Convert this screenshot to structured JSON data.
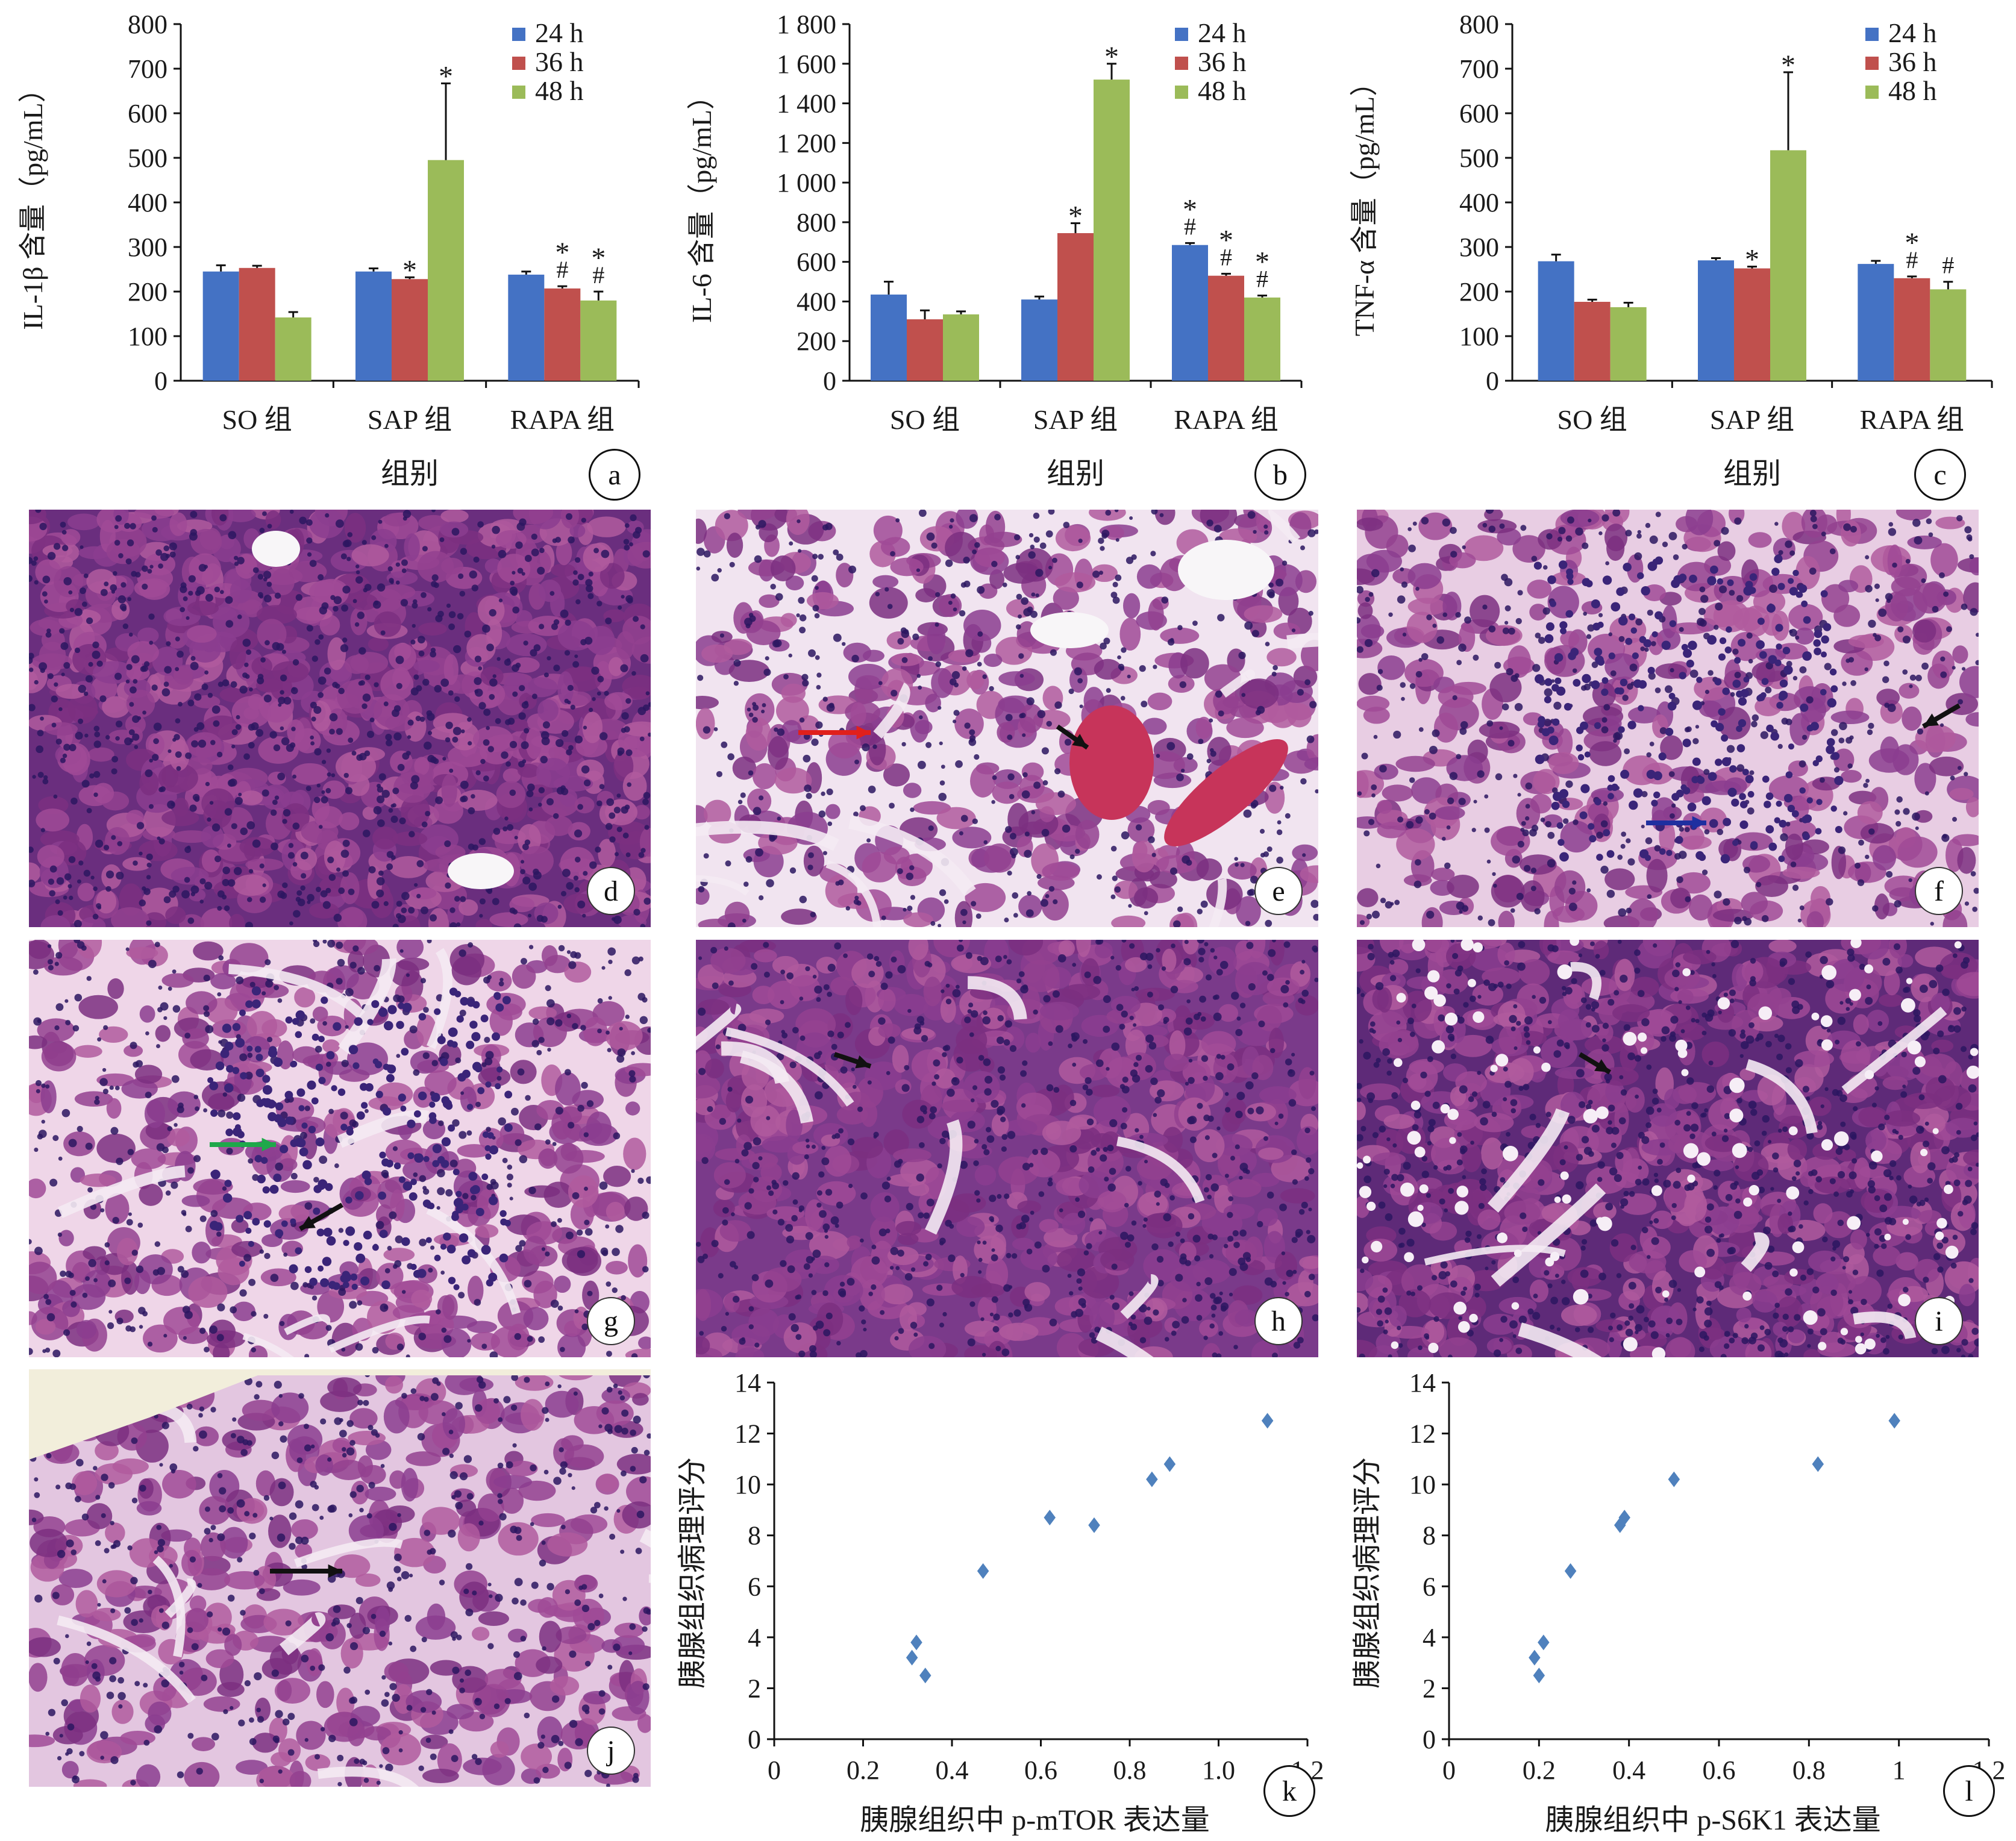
{
  "chart_data": [
    {
      "panel": "a",
      "type": "bar",
      "ylabel": "IL-1β 含量（pg/mL）",
      "xlabel": "组别",
      "categories": [
        "SO 组",
        "SAP 组",
        "RAPA 组"
      ],
      "ylim": [
        0,
        800
      ],
      "yticks": [
        "0",
        "100",
        "200",
        "300",
        "400",
        "500",
        "600",
        "700",
        "800"
      ],
      "legend_position": "top-right",
      "series": [
        {
          "name": "24 h",
          "color": "#4472C4",
          "values": [
            245,
            245,
            238
          ],
          "err": [
            14,
            7,
            7
          ]
        },
        {
          "name": "36 h",
          "color": "#C0504D",
          "values": [
            253,
            228,
            207
          ],
          "err": [
            5,
            4,
            5
          ]
        },
        {
          "name": "48 h",
          "color": "#9BBB59",
          "values": [
            142,
            495,
            180
          ],
          "err": [
            12,
            172,
            20
          ]
        }
      ],
      "annotations": [
        {
          "category": 1,
          "series": 1,
          "marks": [
            "*"
          ]
        },
        {
          "category": 1,
          "series": 2,
          "marks": [
            "*"
          ]
        },
        {
          "category": 2,
          "series": 1,
          "marks": [
            "*",
            "#"
          ]
        },
        {
          "category": 2,
          "series": 2,
          "marks": [
            "*",
            "#"
          ]
        }
      ]
    },
    {
      "panel": "b",
      "type": "bar",
      "ylabel": "IL-6 含量（pg/mL）",
      "xlabel": "组别",
      "categories": [
        "SO 组",
        "SAP 组",
        "RAPA 组"
      ],
      "ylim": [
        0,
        1800
      ],
      "yticks": [
        "0",
        "200",
        "400",
        "600",
        "800",
        "1 000",
        "1 200",
        "1 400",
        "1 600",
        "1 800"
      ],
      "legend_position": "top-right",
      "series": [
        {
          "name": "24 h",
          "color": "#4472C4",
          "values": [
            435,
            410,
            685
          ],
          "err": [
            65,
            15,
            10
          ]
        },
        {
          "name": "36 h",
          "color": "#C0504D",
          "values": [
            310,
            745,
            530
          ],
          "err": [
            45,
            50,
            10
          ]
        },
        {
          "name": "48 h",
          "color": "#9BBB59",
          "values": [
            335,
            1520,
            420
          ],
          "err": [
            15,
            80,
            10
          ]
        }
      ],
      "annotations": [
        {
          "category": 1,
          "series": 1,
          "marks": [
            "*"
          ]
        },
        {
          "category": 1,
          "series": 2,
          "marks": [
            "*"
          ]
        },
        {
          "category": 2,
          "series": 0,
          "marks": [
            "*",
            "#"
          ]
        },
        {
          "category": 2,
          "series": 1,
          "marks": [
            "*",
            "#"
          ]
        },
        {
          "category": 2,
          "series": 2,
          "marks": [
            "*",
            "#"
          ]
        }
      ]
    },
    {
      "panel": "c",
      "type": "bar",
      "ylabel": "TNF-α 含量（pg/mL）",
      "xlabel": "组别",
      "categories": [
        "SO 组",
        "SAP 组",
        "RAPA 组"
      ],
      "ylim": [
        0,
        800
      ],
      "yticks": [
        "0",
        "100",
        "200",
        "300",
        "400",
        "500",
        "600",
        "700",
        "800"
      ],
      "legend_position": "top-right",
      "series": [
        {
          "name": "24 h",
          "color": "#4472C4",
          "values": [
            268,
            270,
            262
          ],
          "err": [
            15,
            5,
            7
          ]
        },
        {
          "name": "36 h",
          "color": "#C0504D",
          "values": [
            177,
            252,
            230
          ],
          "err": [
            5,
            4,
            4
          ]
        },
        {
          "name": "48 h",
          "color": "#9BBB59",
          "values": [
            165,
            517,
            205
          ],
          "err": [
            10,
            175,
            17
          ]
        }
      ],
      "annotations": [
        {
          "category": 1,
          "series": 1,
          "marks": [
            "*"
          ]
        },
        {
          "category": 1,
          "series": 2,
          "marks": [
            "*"
          ]
        },
        {
          "category": 2,
          "series": 1,
          "marks": [
            "*",
            "#"
          ]
        },
        {
          "category": 2,
          "series": 2,
          "marks": [
            "#"
          ]
        }
      ]
    },
    {
      "panel": "k",
      "type": "scatter",
      "xlabel": "胰腺组织中 p-mTOR 表达量",
      "ylabel": "胰腺组织病理评分",
      "xlim": [
        0,
        1.2
      ],
      "ylim": [
        0,
        14
      ],
      "xticks": [
        "0",
        "0.2",
        "0.4",
        "0.6",
        "0.8",
        "1.0",
        "1.2"
      ],
      "yticks": [
        "0",
        "2",
        "4",
        "6",
        "8",
        "10",
        "12",
        "14"
      ],
      "color": "#4F81BD",
      "points": [
        {
          "x": 0.31,
          "y": 3.2
        },
        {
          "x": 0.32,
          "y": 3.8
        },
        {
          "x": 0.34,
          "y": 2.5
        },
        {
          "x": 0.47,
          "y": 6.6
        },
        {
          "x": 0.62,
          "y": 8.7
        },
        {
          "x": 0.72,
          "y": 8.4
        },
        {
          "x": 0.85,
          "y": 10.2
        },
        {
          "x": 0.89,
          "y": 10.8
        },
        {
          "x": 1.11,
          "y": 12.5
        }
      ]
    },
    {
      "panel": "l",
      "type": "scatter",
      "xlabel": "胰腺组织中 p-S6K1 表达量",
      "ylabel": "胰腺组织病理评分",
      "xlim": [
        0,
        1.2
      ],
      "ylim": [
        0,
        14
      ],
      "xticks": [
        "0",
        "0.2",
        "0.4",
        "0.6",
        "0.8",
        "1",
        "1.2"
      ],
      "yticks": [
        "0",
        "2",
        "4",
        "6",
        "8",
        "10",
        "12",
        "14"
      ],
      "color": "#4F81BD",
      "points": [
        {
          "x": 0.19,
          "y": 3.2
        },
        {
          "x": 0.2,
          "y": 2.5
        },
        {
          "x": 0.21,
          "y": 3.8
        },
        {
          "x": 0.27,
          "y": 6.6
        },
        {
          "x": 0.38,
          "y": 8.4
        },
        {
          "x": 0.39,
          "y": 8.7
        },
        {
          "x": 0.5,
          "y": 10.2
        },
        {
          "x": 0.82,
          "y": 10.8
        },
        {
          "x": 0.99,
          "y": 12.5
        }
      ]
    }
  ],
  "micrographs": [
    {
      "label": "d",
      "style": "dense-normal",
      "arrows": []
    },
    {
      "label": "e",
      "style": "edema-vessels",
      "arrows": [
        {
          "color": "#E0201C"
        },
        {
          "color": "#111111"
        }
      ]
    },
    {
      "label": "f",
      "style": "inflammatory",
      "arrows": [
        {
          "color": "#111111"
        },
        {
          "color": "#1F2FA0"
        }
      ]
    },
    {
      "label": "g",
      "style": "necrosis",
      "arrows": [
        {
          "color": "#1FA84A"
        },
        {
          "color": "#111111"
        }
      ]
    },
    {
      "label": "h",
      "style": "lobular",
      "arrows": [
        {
          "color": "#111111"
        }
      ]
    },
    {
      "label": "i",
      "style": "vacuolated",
      "arrows": [
        {
          "color": "#111111"
        }
      ]
    },
    {
      "label": "j",
      "style": "edge-lesion",
      "arrows": [
        {
          "color": "#111111"
        }
      ]
    }
  ],
  "colors": {
    "bar_24h": "#4472C4",
    "bar_36h": "#C0504D",
    "bar_48h": "#9BBB59",
    "he_stain_base": "#6A2E7E",
    "scatter": "#4F81BD"
  }
}
